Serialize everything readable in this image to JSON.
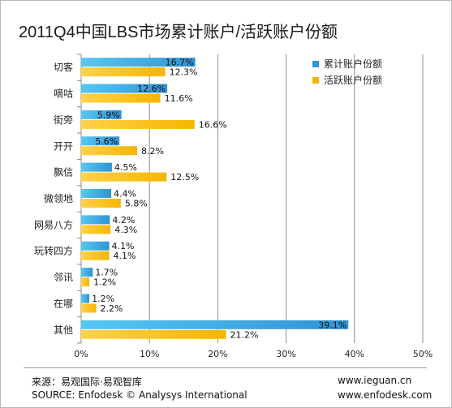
{
  "title": "2011Q4中国LBS市场累计账户/活跃账户份额",
  "chart_data": {
    "type": "bar",
    "orientation": "horizontal",
    "categories": [
      "切客",
      "嘀咕",
      "街旁",
      "开开",
      "飘信",
      "微领地",
      "网易八方",
      "玩转四方",
      "邻讯",
      "在哪",
      "其他"
    ],
    "series": [
      {
        "name": "累计账户份额",
        "color": "#2f93d6",
        "values": [
          16.7,
          12.6,
          5.9,
          5.6,
          4.5,
          4.4,
          4.2,
          4.1,
          1.7,
          1.2,
          39.1
        ],
        "labels": [
          "16.7%",
          "12.6%",
          "5.9%",
          "5.6%",
          "4.5%",
          "4.4%",
          "4.2%",
          "4.1%",
          "1.7%",
          "1.2%",
          "39.1%"
        ]
      },
      {
        "name": "活跃账户份额",
        "color": "#f6b500",
        "values": [
          12.3,
          11.6,
          16.6,
          8.2,
          12.5,
          5.8,
          4.3,
          4.1,
          1.2,
          2.2,
          21.2
        ],
        "labels": [
          "12.3%",
          "11.6%",
          "16.6%",
          "8.2%",
          "12.5%",
          "5.8%",
          "4.3%",
          "4.1%",
          "1.2%",
          "2.2%",
          "21.2%"
        ]
      }
    ],
    "xlim": [
      0,
      50
    ],
    "xticks": [
      "0%",
      "10%",
      "20%",
      "30%",
      "40%",
      "50%"
    ],
    "grid": true,
    "legend_position": "top-right"
  },
  "footer": {
    "source_cn": "来源：易观国际·易观智库",
    "source_en": "SOURCE: Enfodesk © Analysys International",
    "url_1": "www.ieguan.cn",
    "url_2": "www.enfodesk.com"
  }
}
